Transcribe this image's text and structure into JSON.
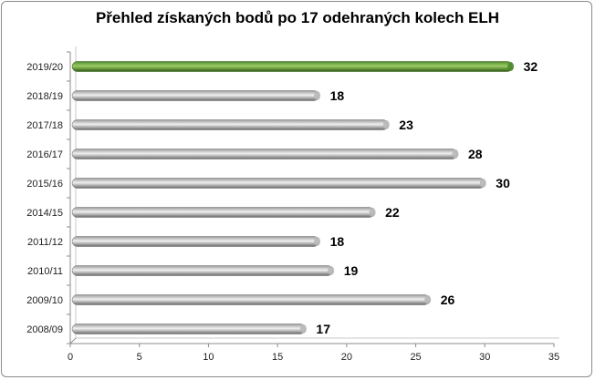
{
  "chart_data": {
    "type": "bar",
    "orientation": "horizontal",
    "title": "Přehled získaných bodů po 17 odehraných kolech ELH",
    "categories": [
      "2019/20",
      "2018/19",
      "2017/18",
      "2016/17",
      "2015/16",
      "2014/15",
      "2011/12",
      "2010/11",
      "2009/10",
      "2008/09"
    ],
    "values": [
      32,
      18,
      23,
      28,
      30,
      22,
      18,
      19,
      26,
      17
    ],
    "xlim": [
      0,
      35
    ],
    "xticks": [
      "0",
      "5",
      "10",
      "15",
      "20",
      "25",
      "30",
      "35"
    ],
    "xlabel": "",
    "ylabel": "",
    "grid": false,
    "highlight_index": 0,
    "colors": {
      "highlight": "#4f8a2e",
      "highlight_light": "#9ccc65",
      "highlight_dark": "#2e5c16",
      "bar": "#9a9a9a",
      "bar_light": "#f0f0f0",
      "bar_dark": "#6a6a6a",
      "axis": "#8c8c8c"
    }
  }
}
